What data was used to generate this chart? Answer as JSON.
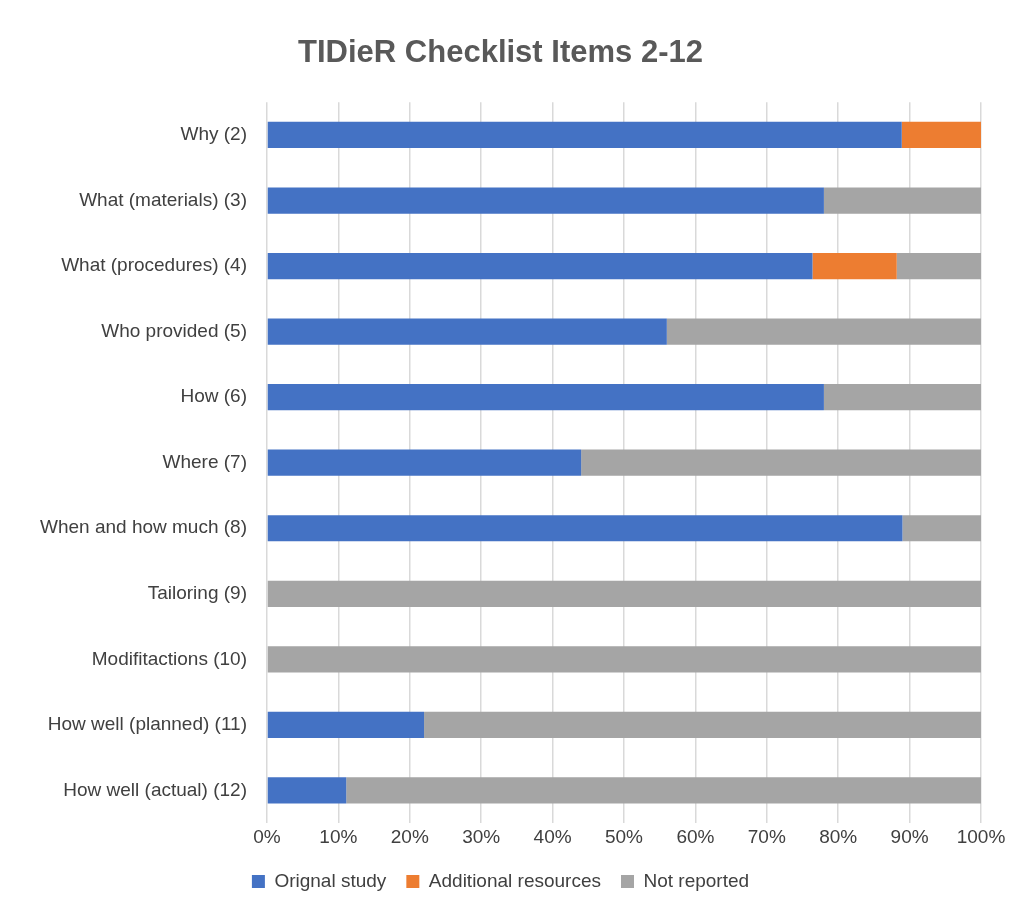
{
  "chart_data": {
    "type": "bar",
    "orientation": "horizontal",
    "stacked": true,
    "title": "TIDieR Checklist Items 2-12",
    "categories": [
      "Why (2)",
      "What (materials) (3)",
      "What (procedures) (4)",
      "Who provided (5)",
      "How (6)",
      "Where (7)",
      "When and how much (8)",
      "Tailoring (9)",
      "Modifitactions (10)",
      "How well (planned) (11)",
      "How well (actual) (12)"
    ],
    "series": [
      {
        "name": "Orignal study",
        "color": "#4472c4",
        "values": [
          88.9,
          78,
          76.4,
          56,
          78,
          44,
          89,
          0,
          0,
          22,
          11.1
        ]
      },
      {
        "name": "Additional resources",
        "color": "#ed7d31",
        "values": [
          11.1,
          0,
          11.8,
          0,
          0,
          0,
          0,
          0,
          0,
          0,
          0
        ]
      },
      {
        "name": "Not reported",
        "color": "#a5a5a5",
        "values": [
          0,
          22,
          11.8,
          44,
          22,
          56,
          11,
          100,
          100,
          78,
          88.9
        ]
      }
    ],
    "xlim": [
      0,
      100
    ],
    "xticks": [
      {
        "value": 0,
        "label": "0%"
      },
      {
        "value": 10,
        "label": "10%"
      },
      {
        "value": 20,
        "label": "20%"
      },
      {
        "value": 30,
        "label": "30%"
      },
      {
        "value": 40,
        "label": "40%"
      },
      {
        "value": 50,
        "label": "50%"
      },
      {
        "value": 60,
        "label": "60%"
      },
      {
        "value": 70,
        "label": "70%"
      },
      {
        "value": 80,
        "label": "80%"
      },
      {
        "value": 90,
        "label": "90%"
      },
      {
        "value": 100,
        "label": "100%"
      }
    ],
    "grid": "x",
    "legend": "bottom"
  }
}
